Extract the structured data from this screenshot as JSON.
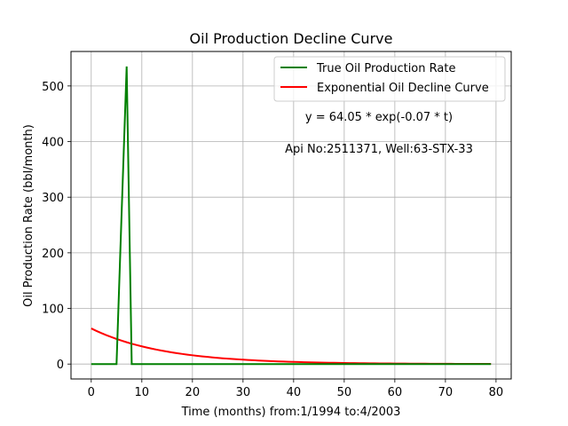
{
  "chart_data": {
    "type": "line",
    "title": "Oil Production Decline Curve",
    "xlabel": "Time (months) from:1/1994 to:4/2003",
    "ylabel": "Oil Production Rate (bbl/month)",
    "xlim": [
      -4,
      83
    ],
    "ylim": [
      -26.8,
      562
    ],
    "xticks": [
      0,
      10,
      20,
      30,
      40,
      50,
      60,
      70,
      80
    ],
    "yticks": [
      0,
      100,
      200,
      300,
      400,
      500
    ],
    "grid": true,
    "legend_placement": "top-right",
    "series": [
      {
        "name": "True Oil Production Rate",
        "color": "#008000",
        "x": [
          0,
          1,
          2,
          3,
          4,
          5,
          6,
          7,
          8,
          9,
          79
        ],
        "y": [
          0,
          0,
          0,
          0,
          0,
          0,
          270,
          535,
          0,
          0,
          0
        ]
      },
      {
        "name": "Exponential Oil Decline Curve",
        "color": "#ff0000",
        "model": {
          "a": 64.05,
          "b": -0.07,
          "x_start": 0,
          "x_end": 79
        }
      }
    ],
    "annotations": [
      {
        "text": "y = 64.05 * exp(-0.07 * t)"
      },
      {
        "text": "Api No:2511371, Well:63-STX-33"
      }
    ]
  }
}
